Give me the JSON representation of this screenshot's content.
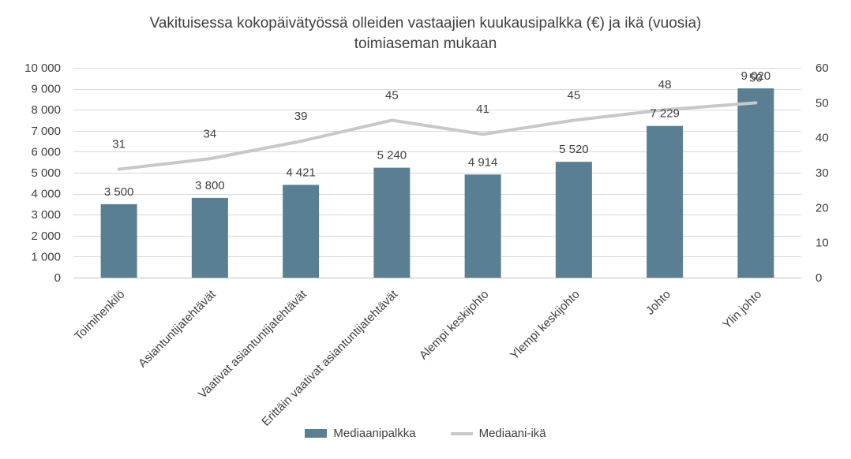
{
  "chart_data": {
    "type": "bar",
    "title_line1": "Vakituisessa kokopäivätyössä olleiden vastaajien kuukausipalkka (€) ja ikä (vuosia)",
    "title_line2": "toimiaseman mukaan",
    "categories": [
      "Toimihenkilö",
      "Asiantuntijatehtävät",
      "Vaativat asiantuntijatehtävät",
      "Erittäin vaativat asiantuntijatehtävät",
      "Alempi keskijohto",
      "Ylempi keskijohto",
      "Johto",
      "Ylin johto"
    ],
    "series": [
      {
        "name": "Mediaanipalkka",
        "type": "bar",
        "axis": "left",
        "values": [
          3500,
          3800,
          4421,
          5240,
          4914,
          5520,
          7229,
          9020
        ],
        "labels": [
          "3 500",
          "3 800",
          "4 421",
          "5 240",
          "4 914",
          "5 520",
          "7 229",
          "9 020"
        ],
        "color": "#5b7f92"
      },
      {
        "name": "Mediaani-ikä",
        "type": "line",
        "axis": "right",
        "values": [
          31,
          34,
          39,
          45,
          41,
          45,
          48,
          50
        ],
        "labels": [
          "31",
          "34",
          "39",
          "45",
          "41",
          "45",
          "48",
          "50"
        ],
        "color": "#c8c8c8"
      }
    ],
    "y_left": {
      "min": 0,
      "max": 10000,
      "ticks": [
        0,
        1000,
        2000,
        3000,
        4000,
        5000,
        6000,
        7000,
        8000,
        9000,
        10000
      ],
      "tick_labels": [
        "0",
        "1 000",
        "2 000",
        "3 000",
        "4 000",
        "5 000",
        "6 000",
        "7 000",
        "8 000",
        "9 000",
        "10 000"
      ]
    },
    "y_right": {
      "min": 0,
      "max": 60,
      "ticks": [
        0,
        10,
        20,
        30,
        40,
        50,
        60
      ],
      "tick_labels": [
        "0",
        "10",
        "20",
        "30",
        "40",
        "50",
        "60"
      ]
    },
    "grid": true,
    "legend_position": "bottom"
  }
}
